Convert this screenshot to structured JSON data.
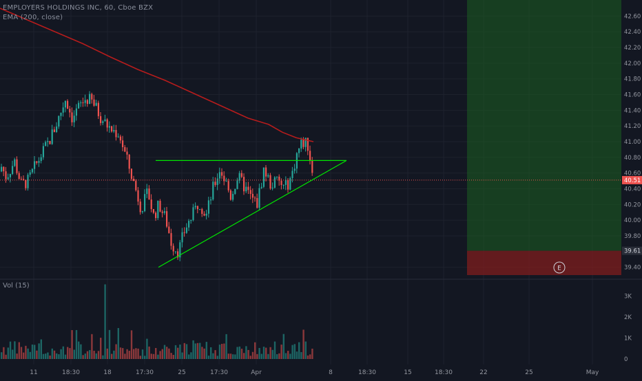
{
  "legend": {
    "title": "EMPLOYERS HOLDINGS INC, 60, Cboe BZX",
    "ema": "EMA (200, close)",
    "volume": "Vol (15)"
  },
  "colors": {
    "background": "#131722",
    "grid": "#1e222d",
    "up": "#26a69a",
    "down": "#ef5350",
    "ema": "#b71c1c",
    "trendline": "#00e600",
    "target_zone": "#1b5e20",
    "stop_zone": "#7f1d1d",
    "price_line": "#ef5350"
  },
  "price_axis": {
    "ticks": [
      "42.60",
      "42.40",
      "42.20",
      "42.00",
      "41.80",
      "41.60",
      "41.40",
      "41.20",
      "41.00",
      "40.80",
      "40.60",
      "40.40",
      "40.20",
      "40.00",
      "39.80",
      "39.40"
    ],
    "current_price_label": "40.51",
    "current_price": 40.51,
    "stop_price_label": "39.61",
    "stop_price": 39.61
  },
  "volume_axis": {
    "ticks": [
      "3K",
      "2K",
      "1K",
      "0"
    ]
  },
  "time_axis": {
    "labels": [
      "11",
      "18:30",
      "18",
      "17:30",
      "25",
      "17:30",
      "Apr",
      "8",
      "18:30",
      "15",
      "18:30",
      "22",
      "25",
      "May"
    ]
  },
  "event_marker": "E",
  "chart_data": {
    "type": "candlestick",
    "title": "EMPLOYERS HOLDINGS INC, 60, Cboe BZX",
    "ylim": [
      39.3,
      42.7
    ],
    "volume_ylim": [
      0,
      3500
    ],
    "ema_period": 200,
    "current_price": 40.51,
    "stop_price": 39.61,
    "ema_values": [
      42.7,
      42.55,
      42.4,
      42.25,
      42.08,
      41.92,
      41.78,
      41.62,
      41.46,
      41.3,
      41.22,
      41.12,
      41.05,
      41.0
    ],
    "support_trendline": {
      "from": [
        39.4
      ],
      "to": [
        40.76
      ]
    },
    "resistance_level": 40.76
  }
}
